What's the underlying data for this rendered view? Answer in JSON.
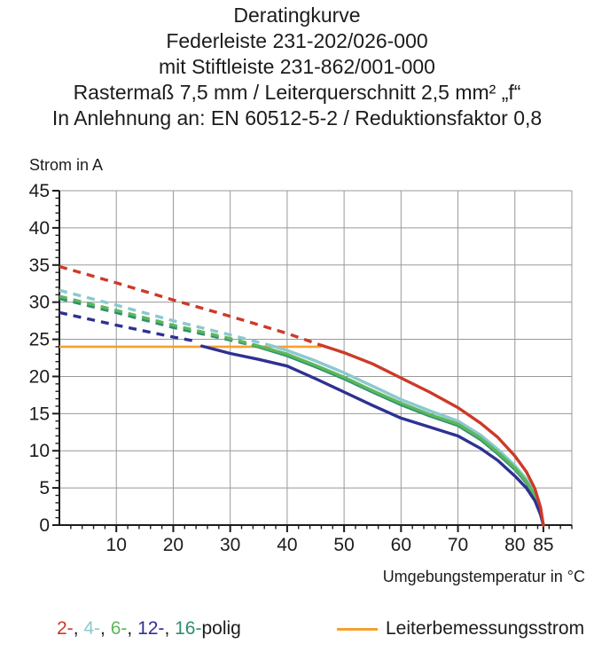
{
  "title": {
    "lines": [
      "Deratingkurve",
      "Federleiste 231-202/026-000",
      "mit Stiftleiste 231-862/001-000",
      "Rastermaß 7,5 mm / Leiterquerschnitt 2,5 mm² „f“",
      "In Anlehnung an: EN 60512-5-2 / Reduktionsfaktor 0,8"
    ]
  },
  "chart_data": {
    "type": "line",
    "title": "Deratingkurve",
    "xlabel": "Umgebungstemperatur in °C",
    "ylabel": "Strom in A",
    "xlim": [
      0,
      90
    ],
    "ylim": [
      0,
      45
    ],
    "x_major_ticks": [
      10,
      20,
      30,
      40,
      50,
      60,
      70,
      80,
      85
    ],
    "x_grid_step": 10,
    "x_minor_step": 2,
    "y_major_ticks": [
      0,
      5,
      10,
      15,
      20,
      25,
      30,
      35,
      40,
      45
    ],
    "y_grid_step": 5,
    "y_minor_step": 1,
    "grid": true,
    "grid_color": "#999999",
    "axis_color": "#1c1c1c",
    "reference_line": {
      "name": "Leiterbemessungsstrom",
      "value": 24,
      "x_start": 0,
      "x_end": 46,
      "color": "#f6a02d"
    },
    "series": [
      {
        "name": "16-polig",
        "color": "#2e8e71",
        "dashed": [
          [
            0,
            30.5
          ],
          [
            10,
            28.6
          ],
          [
            20,
            26.6
          ],
          [
            30,
            24.9
          ],
          [
            34,
            24.2
          ]
        ],
        "solid": [
          [
            34,
            24.2
          ],
          [
            40,
            22.8
          ],
          [
            45,
            21.3
          ],
          [
            50,
            19.7
          ],
          [
            55,
            17.9
          ],
          [
            60,
            16.2
          ],
          [
            65,
            14.7
          ],
          [
            70,
            13.4
          ],
          [
            74,
            11.5
          ],
          [
            77,
            9.6
          ],
          [
            80,
            7.5
          ],
          [
            82,
            5.7
          ],
          [
            83.5,
            3.8
          ],
          [
            84.5,
            1.7
          ],
          [
            85,
            0
          ]
        ]
      },
      {
        "name": "4-polig",
        "color": "#8cc8d0",
        "dashed": [
          [
            0,
            31.6
          ],
          [
            10,
            29.6
          ],
          [
            20,
            27.5
          ],
          [
            30,
            25.6
          ],
          [
            37,
            24.2
          ]
        ],
        "solid": [
          [
            37,
            24.2
          ],
          [
            40,
            23.5
          ],
          [
            45,
            22.1
          ],
          [
            50,
            20.5
          ],
          [
            55,
            18.7
          ],
          [
            60,
            16.9
          ],
          [
            65,
            15.4
          ],
          [
            70,
            14.0
          ],
          [
            74,
            12.1
          ],
          [
            77,
            10.2
          ],
          [
            80,
            8.0
          ],
          [
            82,
            6.2
          ],
          [
            83.5,
            4.2
          ],
          [
            84.5,
            2.0
          ],
          [
            85,
            0
          ]
        ]
      },
      {
        "name": "6-polig",
        "color": "#5cb75b",
        "dashed": [
          [
            0,
            30.8
          ],
          [
            10,
            28.9
          ],
          [
            20,
            26.9
          ],
          [
            30,
            25.1
          ],
          [
            34.5,
            24.2
          ]
        ],
        "solid": [
          [
            34.5,
            24.2
          ],
          [
            40,
            23.0
          ],
          [
            45,
            21.5
          ],
          [
            50,
            19.9
          ],
          [
            55,
            18.1
          ],
          [
            60,
            16.4
          ],
          [
            65,
            14.9
          ],
          [
            70,
            13.6
          ],
          [
            74,
            11.7
          ],
          [
            77,
            9.8
          ],
          [
            80,
            7.7
          ],
          [
            82,
            5.9
          ],
          [
            83.5,
            4.0
          ],
          [
            84.5,
            1.8
          ],
          [
            85,
            0
          ]
        ]
      },
      {
        "name": "12-polig",
        "color": "#2e3192",
        "dashed": [
          [
            0,
            28.6
          ],
          [
            10,
            26.9
          ],
          [
            20,
            25.3
          ],
          [
            23.5,
            24.8
          ]
        ],
        "solid": [
          [
            25,
            24.1
          ],
          [
            30,
            23.1
          ],
          [
            35,
            22.3
          ],
          [
            40,
            21.4
          ],
          [
            45,
            19.7
          ],
          [
            50,
            17.9
          ],
          [
            55,
            16.1
          ],
          [
            60,
            14.4
          ],
          [
            65,
            13.2
          ],
          [
            70,
            12.0
          ],
          [
            74,
            10.3
          ],
          [
            77,
            8.7
          ],
          [
            80,
            6.6
          ],
          [
            82,
            5.0
          ],
          [
            83.5,
            3.3
          ],
          [
            84.5,
            1.4
          ],
          [
            85,
            0
          ]
        ]
      },
      {
        "name": "2-polig",
        "color": "#cd3a28",
        "dashed": [
          [
            0,
            34.8
          ],
          [
            10,
            32.6
          ],
          [
            20,
            30.3
          ],
          [
            30,
            28.1
          ],
          [
            40,
            25.8
          ],
          [
            46,
            24.2
          ]
        ],
        "solid": [
          [
            46,
            24.2
          ],
          [
            50,
            23.2
          ],
          [
            55,
            21.7
          ],
          [
            60,
            19.8
          ],
          [
            65,
            17.9
          ],
          [
            70,
            15.8
          ],
          [
            74,
            13.7
          ],
          [
            77,
            11.8
          ],
          [
            80,
            9.3
          ],
          [
            82,
            7.2
          ],
          [
            83.5,
            4.9
          ],
          [
            84.5,
            2.4
          ],
          [
            85,
            0
          ]
        ]
      }
    ]
  },
  "legend": {
    "items": [
      {
        "label": "2-",
        "color": "#cd3a28"
      },
      {
        "label": "4-",
        "color": "#8cc8d0"
      },
      {
        "label": "6-",
        "color": "#5cb75b"
      },
      {
        "label": "12-",
        "color": "#2e3192"
      },
      {
        "label": "16-",
        "color": "#2e8e71"
      }
    ],
    "separator": ", ",
    "suffix": "polig",
    "rated_current_label": "Leiterbemessungsstrom",
    "rated_current_color": "#f6a02d"
  }
}
